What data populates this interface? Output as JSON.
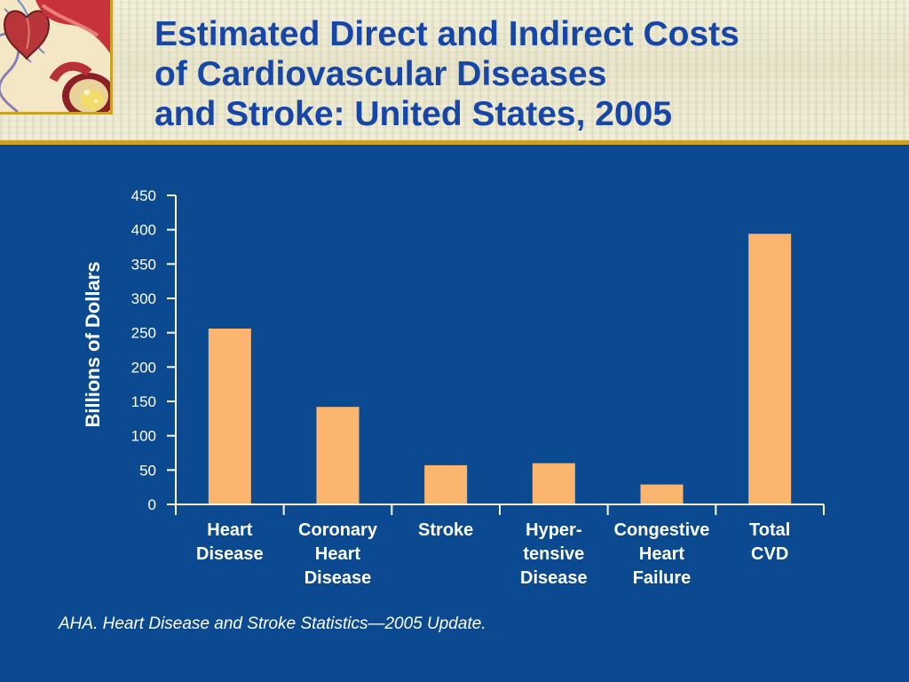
{
  "slide": {
    "title_lines": [
      "Estimated Direct and Indirect Costs",
      "of Cardiovascular Diseases",
      "and Stroke: United States, 2005"
    ],
    "logo_icon": "heart-artery-illustration-icon",
    "source": "AHA. Heart Disease and Stroke Statistics—2005 Update."
  },
  "colors": {
    "background": "#0b4a90",
    "header_band": "#f1eed8",
    "header_rule": "#c9a227",
    "title": "#1646a8",
    "bar": "#fbb56e",
    "text": "#ffffff"
  },
  "chart_data": {
    "type": "bar",
    "categories": [
      [
        "Heart",
        "Disease"
      ],
      [
        "Coronary",
        "Heart",
        "Disease"
      ],
      [
        "Stroke"
      ],
      [
        "Hyper-",
        "tensive",
        "Disease"
      ],
      [
        "Congestive",
        "Heart",
        "Failure"
      ],
      [
        "Total",
        "CVD"
      ]
    ],
    "values": [
      256,
      142,
      57,
      60,
      29,
      394
    ],
    "title": "",
    "xlabel": "",
    "ylabel": "Billions of Dollars",
    "ylim": [
      0,
      450
    ],
    "yticks": [
      0,
      50,
      100,
      150,
      200,
      250,
      300,
      350,
      400,
      450
    ],
    "grid": false,
    "legend": "none"
  }
}
